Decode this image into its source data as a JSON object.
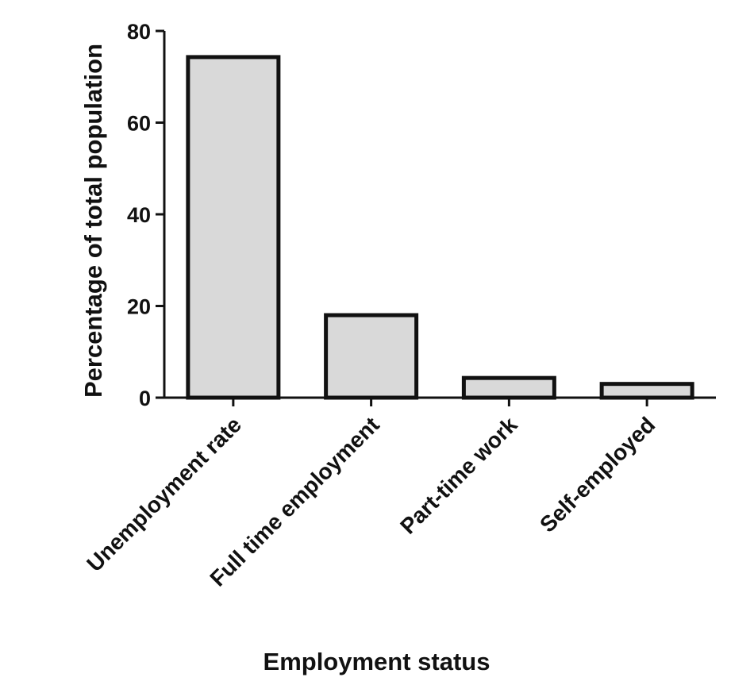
{
  "chart_data": {
    "type": "bar",
    "categories": [
      "Unemployment rate",
      "Full time employment",
      "Part-time work",
      "Self-employed"
    ],
    "values": [
      74.3,
      18.0,
      4.3,
      3.0
    ],
    "xlabel": "Employment status",
    "ylabel": "Percentage of total population",
    "ylim": [
      0,
      80
    ],
    "yticks": [
      "0",
      "20",
      "40",
      "60",
      "80"
    ],
    "grid": false,
    "legend": "none",
    "colors": {
      "bar_fill": "#d9d9d9",
      "bar_stroke": "#111111",
      "axis": "#111111"
    }
  }
}
